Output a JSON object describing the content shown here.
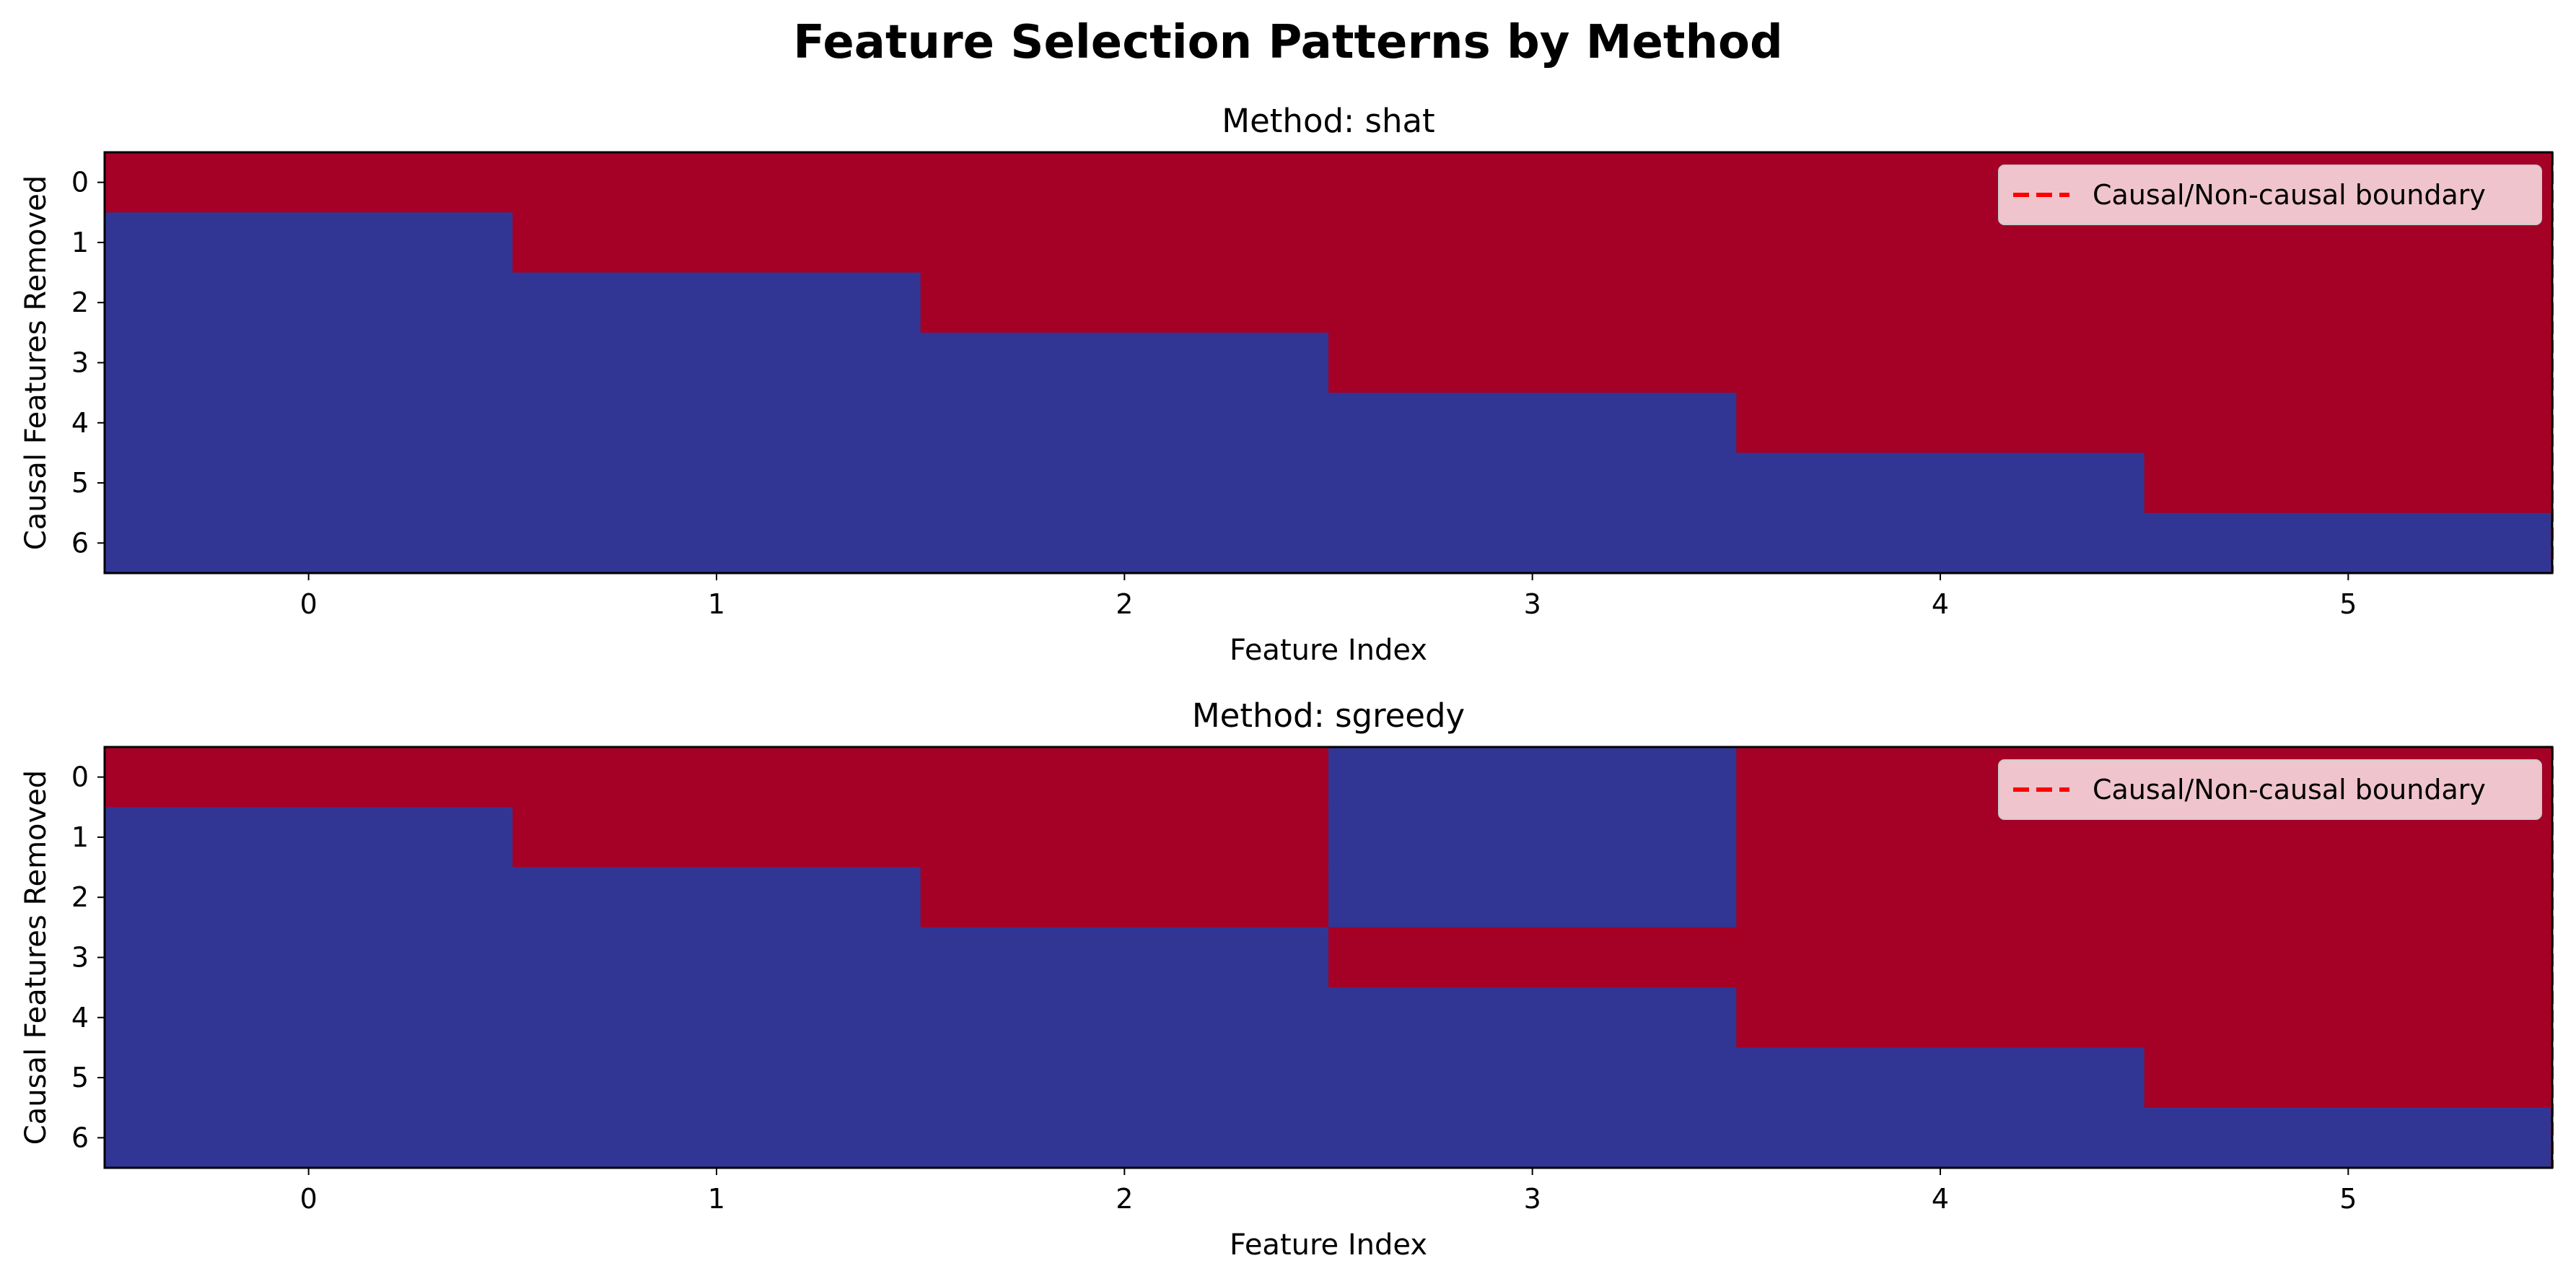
{
  "figure": {
    "title": "Feature Selection Patterns by Method"
  },
  "colors": {
    "selected": "#a50026",
    "not_selected": "#313695",
    "boundary": "#ff0000",
    "legend_bg": "#f2cfd6"
  },
  "chart_data": [
    {
      "type": "heatmap",
      "title": "Method: shat",
      "xlabel": "Feature Index",
      "ylabel": "Causal Features Removed",
      "x_ticks": [
        "0",
        "1",
        "2",
        "3",
        "4",
        "5"
      ],
      "y_ticks": [
        "0",
        "1",
        "2",
        "3",
        "4",
        "5",
        "6"
      ],
      "legend": {
        "entries": [
          "Causal/Non-causal boundary"
        ],
        "placement": "upper-right"
      },
      "boundary_x": 5.5,
      "values": [
        [
          1,
          1,
          1,
          1,
          1,
          1
        ],
        [
          0,
          1,
          1,
          1,
          1,
          1
        ],
        [
          0,
          0,
          1,
          1,
          1,
          1
        ],
        [
          0,
          0,
          0,
          1,
          1,
          1
        ],
        [
          0,
          0,
          0,
          0,
          1,
          1
        ],
        [
          0,
          0,
          0,
          0,
          0,
          1
        ],
        [
          0,
          0,
          0,
          0,
          0,
          0
        ]
      ]
    },
    {
      "type": "heatmap",
      "title": "Method: sgreedy",
      "xlabel": "Feature Index",
      "ylabel": "Causal Features Removed",
      "x_ticks": [
        "0",
        "1",
        "2",
        "3",
        "4",
        "5"
      ],
      "y_ticks": [
        "0",
        "1",
        "2",
        "3",
        "4",
        "5",
        "6"
      ],
      "legend": {
        "entries": [
          "Causal/Non-causal boundary"
        ],
        "placement": "upper-right"
      },
      "boundary_x": 5.5,
      "values": [
        [
          1,
          1,
          1,
          0,
          1,
          1
        ],
        [
          0,
          1,
          1,
          0,
          1,
          1
        ],
        [
          0,
          0,
          1,
          0,
          1,
          1
        ],
        [
          0,
          0,
          0,
          1,
          1,
          1
        ],
        [
          0,
          0,
          0,
          0,
          1,
          1
        ],
        [
          0,
          0,
          0,
          0,
          0,
          1
        ],
        [
          0,
          0,
          0,
          0,
          0,
          0
        ]
      ]
    }
  ]
}
